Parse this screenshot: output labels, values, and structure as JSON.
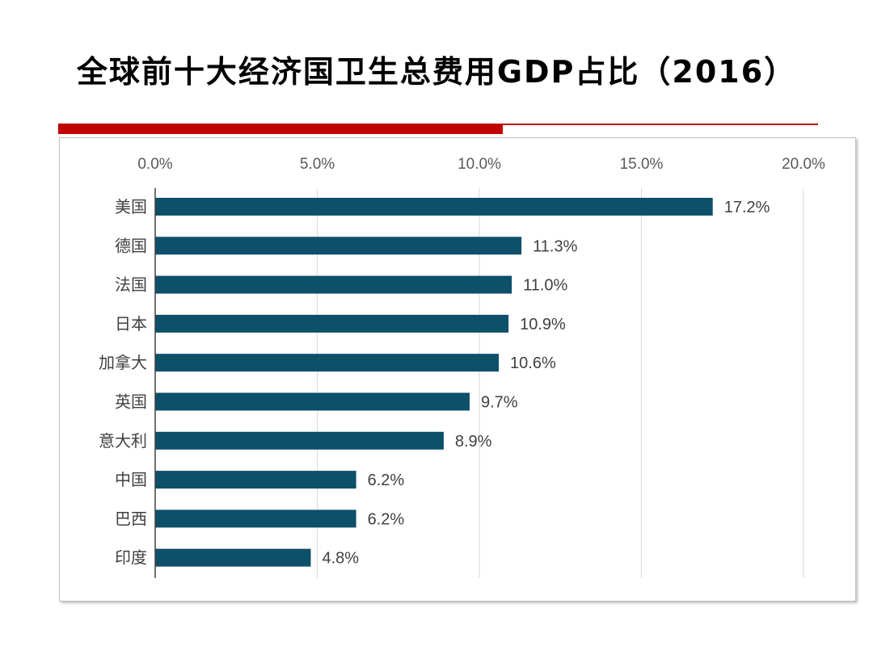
{
  "page": {
    "title": "全球前十大经济国卫生总费用GDP占比（2016）"
  },
  "colors": {
    "accent_red": "#c00000",
    "bar": "#0e4f6a",
    "grid": "#d9d9d9"
  },
  "chart_data": {
    "type": "bar",
    "orientation": "horizontal",
    "title": "",
    "xlabel": "",
    "ylabel": "",
    "xlim": [
      0,
      20
    ],
    "x_ticks": [
      "0.0%",
      "5.0%",
      "10.0%",
      "15.0%",
      "20.0%"
    ],
    "x_axis_position": "top",
    "grid": true,
    "categories": [
      "美国",
      "德国",
      "法国",
      "日本",
      "加拿大",
      "英国",
      "意大利",
      "中国",
      "巴西",
      "印度"
    ],
    "values": [
      17.2,
      11.3,
      11.0,
      10.9,
      10.6,
      9.7,
      8.9,
      6.2,
      6.2,
      4.8
    ],
    "data_labels": [
      "17.2%",
      "11.3%",
      "11.0%",
      "10.9%",
      "10.6%",
      "9.7%",
      "8.9%",
      "6.2%",
      "6.2%",
      "4.8%"
    ]
  }
}
